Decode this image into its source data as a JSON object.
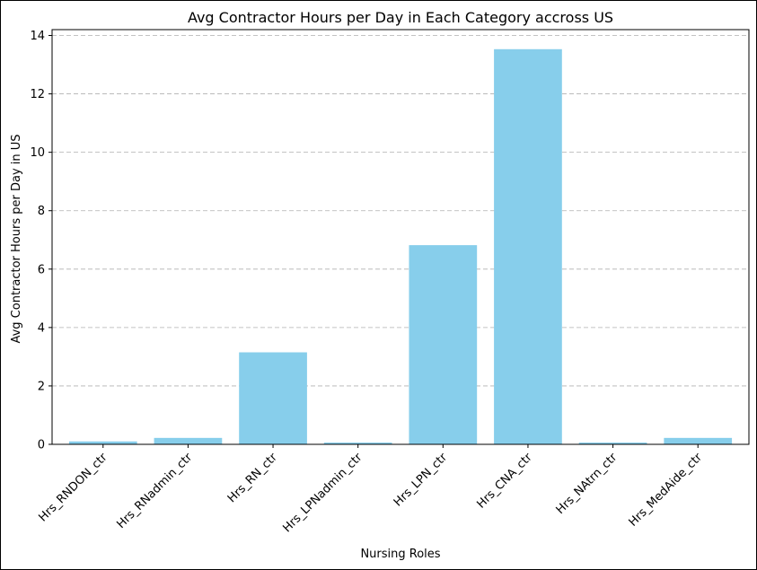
{
  "chart_data": {
    "type": "bar",
    "title": "Avg Contractor Hours per Day in Each Category accross US",
    "xlabel": "Nursing Roles",
    "ylabel": "Avg Contractor Hours per Day in US",
    "categories": [
      "Hrs_RNDON_ctr",
      "Hrs_RNadmin_ctr",
      "Hrs_RN_ctr",
      "Hrs_LPNadmin_ctr",
      "Hrs_LPN_ctr",
      "Hrs_CNA_ctr",
      "Hrs_NAtrn_ctr",
      "Hrs_MedAide_ctr"
    ],
    "values": [
      0.1,
      0.22,
      3.15,
      0.06,
      6.82,
      13.53,
      0.06,
      0.22
    ],
    "ylim": [
      0,
      14.2
    ],
    "yticks": [
      "0",
      "2",
      "4",
      "6",
      "8",
      "10",
      "12",
      "14"
    ],
    "grid": "y, dashed",
    "bar_color": "#87CEEB"
  }
}
